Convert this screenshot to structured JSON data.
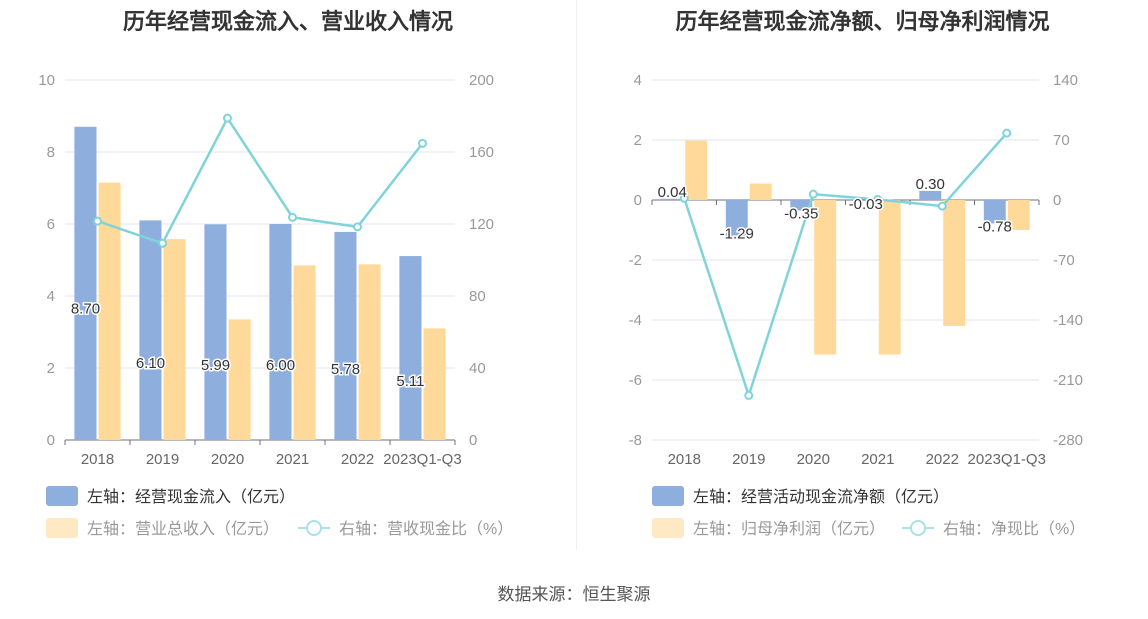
{
  "source": "数据来源：恒生聚源",
  "chart_data": [
    {
      "type": "bar",
      "title": "历年经营现金流入、营业收入情况",
      "categories": [
        "2018",
        "2019",
        "2020",
        "2021",
        "2022",
        "2023Q1-Q3"
      ],
      "left_axis": {
        "min": 0,
        "max": 10,
        "ticks": [
          0,
          2,
          4,
          6,
          8,
          10
        ]
      },
      "right_axis": {
        "min": 0,
        "max": 200,
        "ticks": [
          0,
          40,
          80,
          120,
          160,
          200
        ]
      },
      "series": [
        {
          "name": "左轴：经营现金流入（亿元）",
          "kind": "bar",
          "axis": "left",
          "color": "#8eaedd",
          "values": [
            8.7,
            6.1,
            5.99,
            6.0,
            5.78,
            5.11
          ],
          "labels": [
            "8.70",
            "6.10",
            "5.99",
            "6.00",
            "5.78",
            "5.11"
          ]
        },
        {
          "name": "左轴：营业总收入（亿元）",
          "kind": "bar",
          "axis": "left",
          "color": "#ffd99a",
          "values": [
            7.15,
            5.58,
            3.35,
            4.85,
            4.88,
            3.1
          ]
        },
        {
          "name": "右轴：营收现金比（%）",
          "kind": "line",
          "axis": "right",
          "color": "#7fd3da",
          "values": [
            121.6,
            109.3,
            178.8,
            123.7,
            118.4,
            164.8
          ]
        }
      ],
      "grid": true,
      "legend_position": "bottom-left"
    },
    {
      "type": "bar",
      "title": "历年经营现金流净额、归母净利润情况",
      "categories": [
        "2018",
        "2019",
        "2020",
        "2021",
        "2022",
        "2023Q1-Q3"
      ],
      "left_axis": {
        "min": -8,
        "max": 4,
        "ticks": [
          -8,
          -6,
          -4,
          -2,
          0,
          2,
          4
        ]
      },
      "right_axis": {
        "min": -280,
        "max": 140,
        "ticks": [
          -280,
          -210,
          -140,
          -70,
          0,
          70,
          140
        ]
      },
      "series": [
        {
          "name": "左轴：经营活动现金流净额（亿元）",
          "kind": "bar",
          "axis": "left",
          "color": "#8eaedd",
          "values": [
            0.04,
            -1.29,
            -0.35,
            -0.03,
            0.3,
            -0.78
          ],
          "labels": [
            "0.04",
            "-1.29",
            "-0.35",
            "-0.03",
            "0.30",
            "-0.78"
          ]
        },
        {
          "name": "左轴：归母净利润（亿元）",
          "kind": "bar",
          "axis": "left",
          "color": "#ffd99a",
          "values": [
            1.98,
            0.55,
            -5.15,
            -5.15,
            -4.2,
            -1.0
          ]
        },
        {
          "name": "右轴：净现比（%）",
          "kind": "line",
          "axis": "right",
          "color": "#7fd3da",
          "values": [
            2.0,
            -228.0,
            6.8,
            0.6,
            -7.1,
            78.0
          ]
        }
      ],
      "grid": true,
      "legend_position": "bottom-left"
    }
  ]
}
